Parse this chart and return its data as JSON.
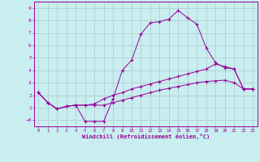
{
  "xlabel": "Windchill (Refroidissement éolien,°C)",
  "ylabel": "",
  "bg_color": "#c8eef0",
  "line_color": "#990099",
  "grid_color": "#b0c8cc",
  "xlim": [
    -0.5,
    23.5
  ],
  "ylim": [
    -0.5,
    9.5
  ],
  "xticks": [
    0,
    1,
    2,
    3,
    4,
    5,
    6,
    7,
    8,
    9,
    10,
    11,
    12,
    13,
    14,
    15,
    16,
    17,
    18,
    19,
    20,
    21,
    22,
    23
  ],
  "yticks": [
    0,
    1,
    2,
    3,
    4,
    5,
    6,
    7,
    8,
    9
  ],
  "curve1_x": [
    0,
    1,
    2,
    3,
    4,
    5,
    6,
    7,
    8,
    9,
    10,
    11,
    12,
    13,
    14,
    15,
    16,
    17,
    18,
    19,
    20,
    21,
    22,
    23
  ],
  "curve1_y": [
    2.2,
    1.4,
    0.9,
    1.1,
    1.2,
    -0.1,
    -0.1,
    -0.1,
    1.7,
    4.0,
    4.8,
    6.9,
    7.8,
    7.9,
    8.1,
    8.8,
    8.2,
    7.7,
    5.8,
    4.6,
    4.2,
    4.1,
    2.5,
    2.5
  ],
  "curve2_x": [
    0,
    1,
    2,
    3,
    4,
    5,
    6,
    7,
    8,
    9,
    10,
    11,
    12,
    13,
    14,
    15,
    16,
    17,
    18,
    19,
    20,
    21,
    22,
    23
  ],
  "curve2_y": [
    2.2,
    1.4,
    0.9,
    1.1,
    1.2,
    1.2,
    1.3,
    1.7,
    2.0,
    2.2,
    2.5,
    2.7,
    2.9,
    3.1,
    3.3,
    3.5,
    3.7,
    3.9,
    4.1,
    4.5,
    4.3,
    4.1,
    2.5,
    2.5
  ],
  "curve3_x": [
    0,
    1,
    2,
    3,
    4,
    5,
    6,
    7,
    8,
    9,
    10,
    11,
    12,
    13,
    14,
    15,
    16,
    17,
    18,
    19,
    20,
    21,
    22,
    23
  ],
  "curve3_y": [
    2.2,
    1.4,
    0.9,
    1.1,
    1.2,
    1.2,
    1.2,
    1.2,
    1.4,
    1.6,
    1.8,
    2.0,
    2.2,
    2.4,
    2.55,
    2.7,
    2.85,
    3.0,
    3.1,
    3.15,
    3.2,
    3.0,
    2.5,
    2.5
  ]
}
